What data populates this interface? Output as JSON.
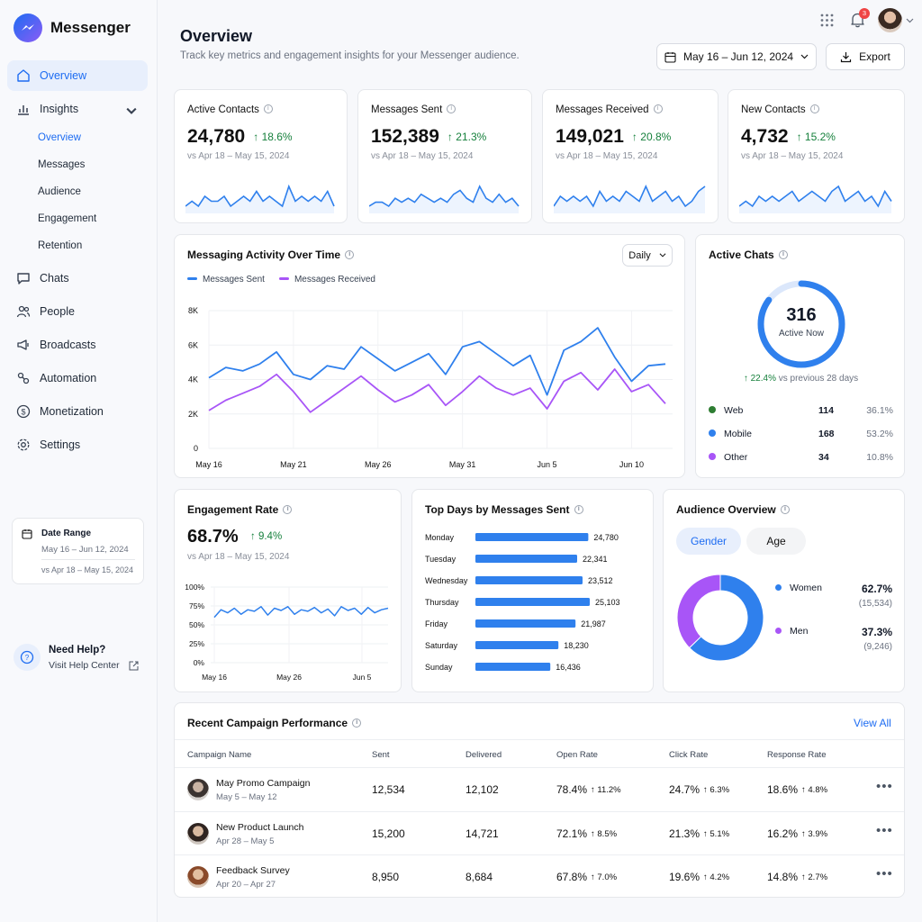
{
  "app": {
    "name": "Messenger"
  },
  "sidebar": {
    "items": [
      {
        "label": "Overview",
        "icon": "home-icon"
      },
      {
        "label": "Insights",
        "icon": "bar-chart-icon"
      },
      {
        "label": "Chats",
        "icon": "chat-bubble-icon"
      },
      {
        "label": "People",
        "icon": "people-icon"
      },
      {
        "label": "Broadcasts",
        "icon": "broadcast-icon"
      },
      {
        "label": "Automation",
        "icon": "automation-icon"
      },
      {
        "label": "Monetization",
        "icon": "dollar-icon"
      },
      {
        "label": "Settings",
        "icon": "gear-icon"
      }
    ],
    "insights_sub": [
      "Overview",
      "Messages",
      "Audience",
      "Engagement",
      "Retention"
    ],
    "date_range": {
      "title": "Date Range",
      "current": "May 16 – Jun 12, 2024",
      "previous": "vs Apr 18 – May 15, 2024"
    },
    "help": {
      "title": "Need Help?",
      "link": "Visit Help Center"
    }
  },
  "header": {
    "title": "Overview",
    "subtitle": "Track key metrics and engagement insights for your Messenger audience.",
    "date_range": "May 16 – Jun 12, 2024",
    "export": "Export",
    "notification_count": "3"
  },
  "kpis": [
    {
      "label": "Active Contacts",
      "value": "24,780",
      "delta": "18.6%",
      "compare": "vs Apr 18 – May 15, 2024",
      "spark": [
        4,
        5,
        4,
        6,
        5,
        5,
        6,
        4,
        5,
        6,
        5,
        7,
        5,
        6,
        5,
        4,
        8,
        5,
        6,
        5,
        6,
        5,
        7,
        4
      ]
    },
    {
      "label": "Messages Sent",
      "value": "152,389",
      "delta": "21.3%",
      "compare": "vs Apr 18 – May 15, 2024",
      "spark": [
        4,
        5,
        5,
        4,
        6,
        5,
        6,
        5,
        7,
        6,
        5,
        6,
        5,
        7,
        8,
        6,
        5,
        9,
        6,
        5,
        7,
        5,
        6,
        4
      ]
    },
    {
      "label": "Messages Received",
      "value": "149,021",
      "delta": "20.8%",
      "compare": "vs Apr 18 – May 15, 2024",
      "spark": [
        4,
        6,
        5,
        6,
        5,
        6,
        4,
        7,
        5,
        6,
        5,
        7,
        6,
        5,
        8,
        5,
        6,
        7,
        5,
        6,
        4,
        5,
        7,
        8
      ]
    },
    {
      "label": "New Contacts",
      "value": "4,732",
      "delta": "15.2%",
      "compare": "vs Apr 18 – May 15, 2024",
      "spark": [
        4,
        5,
        4,
        6,
        5,
        6,
        5,
        6,
        7,
        5,
        6,
        7,
        6,
        5,
        7,
        8,
        5,
        6,
        7,
        5,
        6,
        4,
        7,
        5
      ]
    }
  ],
  "activity": {
    "title": "Messaging Activity Over Time",
    "dropdown": "Daily",
    "legend": [
      "Messages Sent",
      "Messages Received"
    ]
  },
  "chart_data": [
    {
      "type": "line",
      "title": "Messaging Activity Over Time",
      "x": [
        "May 16",
        "May 17",
        "May 18",
        "May 19",
        "May 20",
        "May 21",
        "May 22",
        "May 23",
        "May 24",
        "May 25",
        "May 26",
        "May 27",
        "May 28",
        "May 29",
        "May 30",
        "May 31",
        "Jun 1",
        "Jun 2",
        "Jun 3",
        "Jun 4",
        "Jun 5",
        "Jun 6",
        "Jun 7",
        "Jun 8",
        "Jun 9",
        "Jun 10",
        "Jun 11",
        "Jun 12"
      ],
      "x_ticks": [
        "May 16",
        "May 21",
        "May 26",
        "May 31",
        "Jun 5",
        "Jun 10"
      ],
      "y_ticks": [
        "0",
        "2K",
        "4K",
        "6K",
        "8K"
      ],
      "ylim": [
        0,
        8000
      ],
      "series": [
        {
          "name": "Messages Sent",
          "color": "#2f80ed",
          "values": [
            4100,
            4700,
            4500,
            4900,
            5600,
            4300,
            4000,
            4800,
            4600,
            5900,
            5200,
            4500,
            5000,
            5500,
            4300,
            5900,
            6200,
            5500,
            4800,
            5400,
            3100,
            5700,
            6200,
            7000,
            5300,
            3900,
            4800,
            4900
          ]
        },
        {
          "name": "Messages Received",
          "color": "#a855f7",
          "values": [
            2200,
            2800,
            3200,
            3600,
            4300,
            3300,
            2100,
            2800,
            3500,
            4200,
            3400,
            2700,
            3100,
            3700,
            2500,
            3300,
            4200,
            3500,
            3100,
            3500,
            2300,
            3900,
            4400,
            3400,
            4600,
            3300,
            3700,
            2600
          ]
        }
      ]
    },
    {
      "type": "line",
      "title": "Engagement Rate",
      "x_ticks": [
        "May 16",
        "May 26",
        "Jun 5"
      ],
      "y_ticks": [
        "0%",
        "25%",
        "50%",
        "75%",
        "100%"
      ],
      "ylim": [
        0,
        100
      ],
      "series": [
        {
          "values": [
            60,
            70,
            66,
            72,
            64,
            70,
            68,
            74,
            63,
            72,
            69,
            74,
            64,
            70,
            68,
            73,
            66,
            71,
            62,
            74,
            69,
            72,
            64,
            73,
            66,
            70,
            72
          ]
        }
      ]
    },
    {
      "type": "bar",
      "title": "Top Days by Messages Sent",
      "categories": [
        "Monday",
        "Tuesday",
        "Wednesday",
        "Thursday",
        "Friday",
        "Saturday",
        "Sunday"
      ],
      "values": [
        24780,
        22341,
        23512,
        25103,
        21987,
        18230,
        16436
      ],
      "labels": [
        "24,780",
        "22,341",
        "23,512",
        "25,103",
        "21,987",
        "18,230",
        "16,436"
      ]
    },
    {
      "type": "pie",
      "title": "Audience Overview",
      "categories": [
        "Women",
        "Men"
      ],
      "values": [
        62.7,
        37.3
      ]
    }
  ],
  "active_chats": {
    "title": "Active Chats",
    "value": "316",
    "sub": "Active Now",
    "delta": "22.4%",
    "delta_text": "vs previous 28 days",
    "fraction": 0.85,
    "rows": [
      {
        "name": "Web",
        "count": "114",
        "pct": "36.1%",
        "color": "#2e7d32"
      },
      {
        "name": "Mobile",
        "count": "168",
        "pct": "53.2%",
        "color": "#2f80ed"
      },
      {
        "name": "Other",
        "count": "34",
        "pct": "10.8%",
        "color": "#a855f7"
      }
    ]
  },
  "engagement": {
    "title": "Engagement Rate",
    "value": "68.7%",
    "delta": "9.4%",
    "compare": "vs Apr 18 – May 15, 2024"
  },
  "top_days": {
    "title": "Top Days by Messages Sent"
  },
  "audience": {
    "title": "Audience Overview",
    "tabs": [
      "Gender",
      "Age"
    ],
    "rows": [
      {
        "name": "Women",
        "pct": "62.7%",
        "count": "(15,534)",
        "color": "#2f80ed"
      },
      {
        "name": "Men",
        "pct": "37.3%",
        "count": "(9,246)",
        "color": "#a855f7"
      }
    ]
  },
  "campaigns": {
    "title": "Recent Campaign Performance",
    "view_all": "View All",
    "headers": [
      "Campaign Name",
      "Sent",
      "Delivered",
      "Open Rate",
      "Click Rate",
      "Response Rate"
    ],
    "rows": [
      {
        "name": "May Promo Campaign",
        "dates": "May 5 – May 12",
        "sent": "12,534",
        "delivered": "12,102",
        "open": "78.4%",
        "open_d": "11.2%",
        "click": "24.7%",
        "click_d": "6.3%",
        "resp": "18.6%",
        "resp_d": "4.8%"
      },
      {
        "name": "New Product Launch",
        "dates": "Apr 28 – May 5",
        "sent": "15,200",
        "delivered": "14,721",
        "open": "72.1%",
        "open_d": "8.5%",
        "click": "21.3%",
        "click_d": "5.1%",
        "resp": "16.2%",
        "resp_d": "3.9%"
      },
      {
        "name": "Feedback Survey",
        "dates": "Apr 20 – Apr 27",
        "sent": "8,950",
        "delivered": "8,684",
        "open": "67.8%",
        "open_d": "7.0%",
        "click": "19.6%",
        "click_d": "4.2%",
        "resp": "14.8%",
        "resp_d": "2.7%"
      }
    ]
  }
}
